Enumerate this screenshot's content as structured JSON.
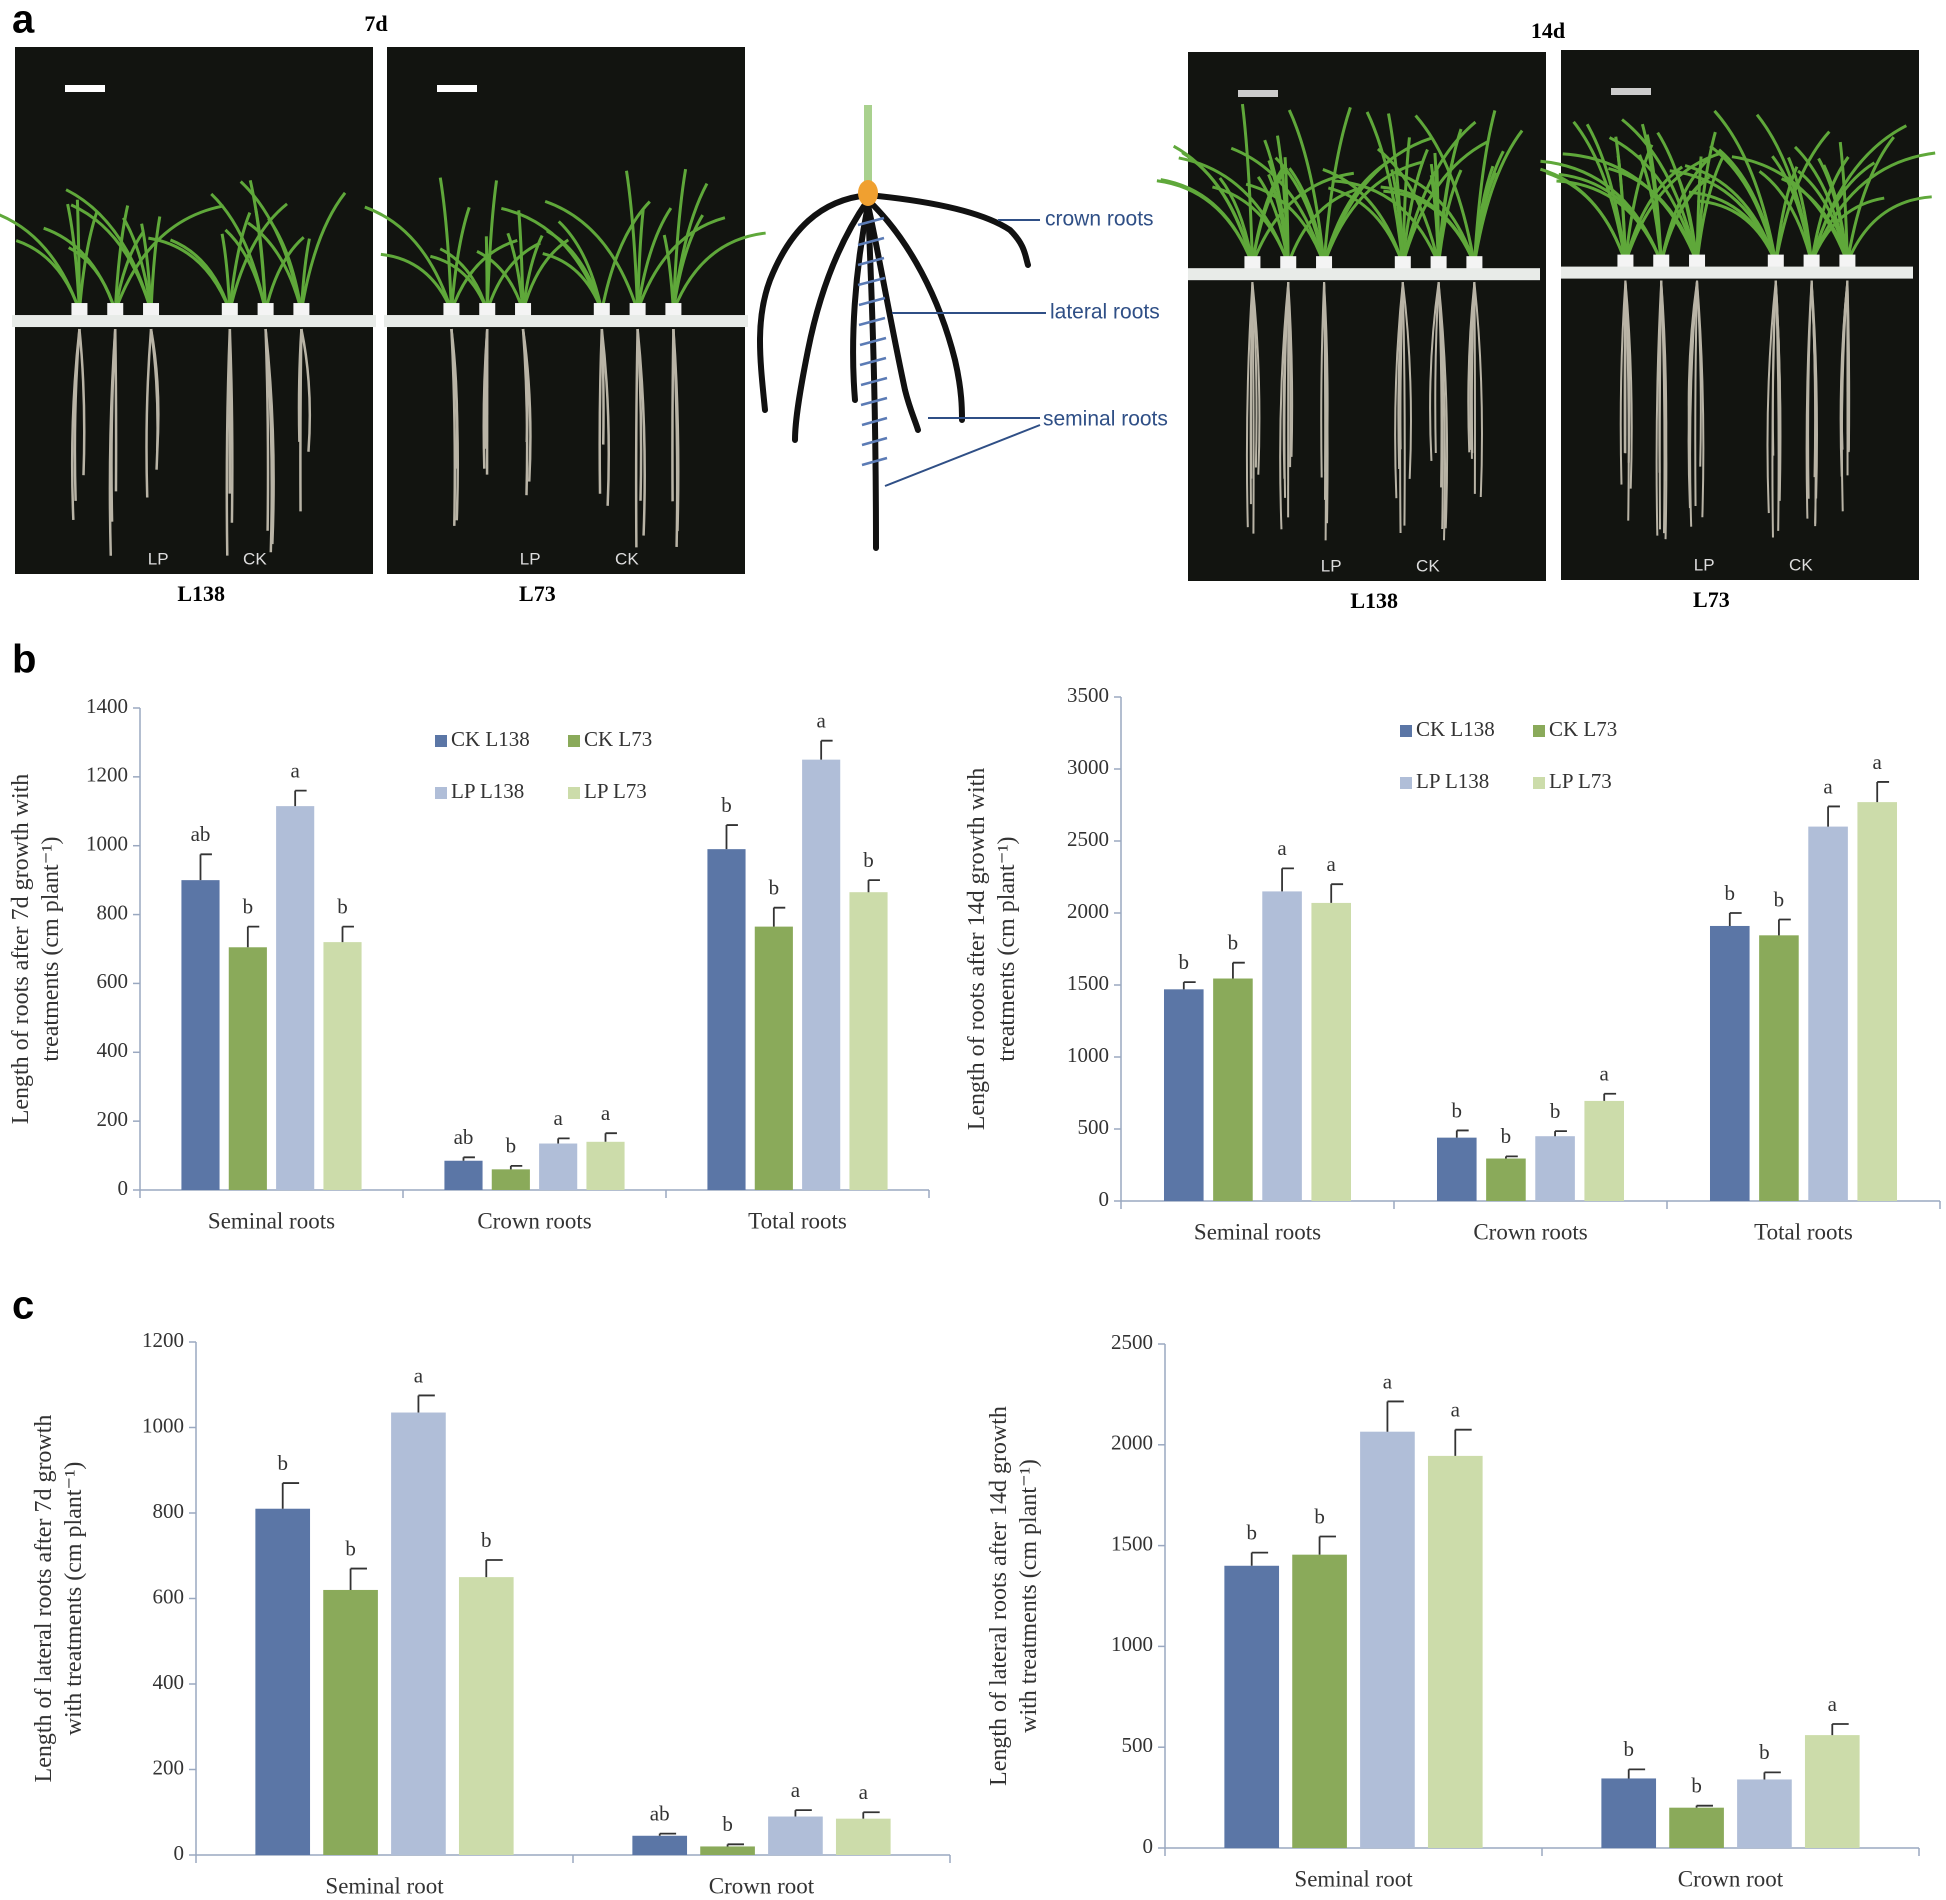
{
  "figure": {
    "panel_a": "a",
    "panel_b": "b",
    "panel_c": "c",
    "day7": "7d",
    "day14": "14d",
    "photos": [
      {
        "line": "L138",
        "lp": "LP",
        "ck": "CK"
      },
      {
        "line": "L73",
        "lp": "LP",
        "ck": "CK"
      },
      {
        "line": "L138",
        "lp": "LP",
        "ck": "CK"
      },
      {
        "line": "L73",
        "lp": "LP",
        "ck": "CK"
      }
    ],
    "diagram": {
      "crown": "crown roots",
      "lateral": "lateral roots",
      "seminal": "seminal roots"
    }
  },
  "chart_data": [
    {
      "type": "bar",
      "ylabel": [
        "Length of roots after 7d growth with",
        "treatments (cm plant⁻¹)"
      ],
      "categories": [
        "Seminal roots",
        "Crown roots",
        "Total roots"
      ],
      "legend": true,
      "ylim": [
        0,
        1400
      ],
      "yticks": [
        0,
        200,
        400,
        600,
        800,
        1000,
        1200,
        1400
      ],
      "series": [
        {
          "name": "CK L138",
          "color": "#5b76a6",
          "values": [
            900,
            85,
            990
          ],
          "errors": [
            75,
            10,
            70
          ],
          "letters": [
            "ab",
            "ab",
            "b"
          ]
        },
        {
          "name": "CK L73",
          "color": "#8aaa5a",
          "values": [
            705,
            60,
            765
          ],
          "errors": [
            60,
            10,
            55
          ],
          "letters": [
            "b",
            "b",
            "b"
          ]
        },
        {
          "name": "LP L138",
          "color": "#b0bed8",
          "values": [
            1115,
            135,
            1250
          ],
          "errors": [
            45,
            15,
            55
          ],
          "letters": [
            "a",
            "a",
            "a"
          ]
        },
        {
          "name": "LP L73",
          "color": "#ccdcaa",
          "values": [
            720,
            140,
            865
          ],
          "errors": [
            45,
            25,
            35
          ],
          "letters": [
            "b",
            "a",
            "b"
          ]
        }
      ]
    },
    {
      "type": "bar",
      "ylabel": [
        "Length of roots after 14d growth with",
        "treatments (cm plant⁻¹)"
      ],
      "categories": [
        "Seminal roots",
        "Crown roots",
        "Total roots"
      ],
      "legend": true,
      "ylim": [
        0,
        3500
      ],
      "yticks": [
        0,
        500,
        1000,
        1500,
        2000,
        2500,
        3000,
        3500
      ],
      "series": [
        {
          "name": "CK L138",
          "color": "#5b76a6",
          "values": [
            1470,
            440,
            1910
          ],
          "errors": [
            50,
            50,
            90
          ],
          "letters": [
            "b",
            "b",
            "b"
          ]
        },
        {
          "name": "CK L73",
          "color": "#8aaa5a",
          "values": [
            1545,
            295,
            1845
          ],
          "errors": [
            110,
            15,
            110
          ],
          "letters": [
            "b",
            "b",
            "b"
          ]
        },
        {
          "name": "LP L138",
          "color": "#b0bed8",
          "values": [
            2150,
            450,
            2600
          ],
          "errors": [
            160,
            35,
            140
          ],
          "letters": [
            "a",
            "b",
            "a"
          ]
        },
        {
          "name": "LP L73",
          "color": "#ccdcaa",
          "values": [
            2070,
            695,
            2770
          ],
          "errors": [
            130,
            50,
            140
          ],
          "letters": [
            "a",
            "a",
            "a"
          ]
        }
      ]
    },
    {
      "type": "bar",
      "ylabel": [
        "Length of  lateral roots after 7d growth",
        "with treatments (cm plant⁻¹)"
      ],
      "categories": [
        "Seminal root",
        "Crown root"
      ],
      "legend": false,
      "ylim": [
        0,
        1200
      ],
      "yticks": [
        0,
        200,
        400,
        600,
        800,
        1000,
        1200
      ],
      "series": [
        {
          "color": "#5b76a6",
          "values": [
            810,
            45
          ],
          "errors": [
            60,
            5
          ],
          "letters": [
            "b",
            "ab"
          ]
        },
        {
          "color": "#8aaa5a",
          "values": [
            620,
            20
          ],
          "errors": [
            50,
            5
          ],
          "letters": [
            "b",
            "b"
          ]
        },
        {
          "color": "#b0bed8",
          "values": [
            1035,
            90
          ],
          "errors": [
            40,
            15
          ],
          "letters": [
            "a",
            "a"
          ]
        },
        {
          "color": "#ccdcaa",
          "values": [
            650,
            85
          ],
          "errors": [
            40,
            15
          ],
          "letters": [
            "b",
            "a"
          ]
        }
      ]
    },
    {
      "type": "bar",
      "ylabel": [
        "Length of  lateral roots after 14d growth",
        "with treatments (cm plant⁻¹)"
      ],
      "categories": [
        "Seminal root",
        "Crown root"
      ],
      "legend": false,
      "ylim": [
        0,
        2500
      ],
      "yticks": [
        0,
        500,
        1000,
        1500,
        2000,
        2500
      ],
      "series": [
        {
          "color": "#5b76a6",
          "values": [
            1400,
            345
          ],
          "errors": [
            65,
            45
          ],
          "letters": [
            "b",
            "b"
          ]
        },
        {
          "color": "#8aaa5a",
          "values": [
            1455,
            200
          ],
          "errors": [
            90,
            10
          ],
          "letters": [
            "b",
            "b"
          ]
        },
        {
          "color": "#b0bed8",
          "values": [
            2065,
            340
          ],
          "errors": [
            150,
            35
          ],
          "letters": [
            "a",
            "b"
          ]
        },
        {
          "color": "#ccdcaa",
          "values": [
            1945,
            560
          ],
          "errors": [
            130,
            55
          ],
          "letters": [
            "a",
            "a"
          ]
        }
      ]
    }
  ]
}
